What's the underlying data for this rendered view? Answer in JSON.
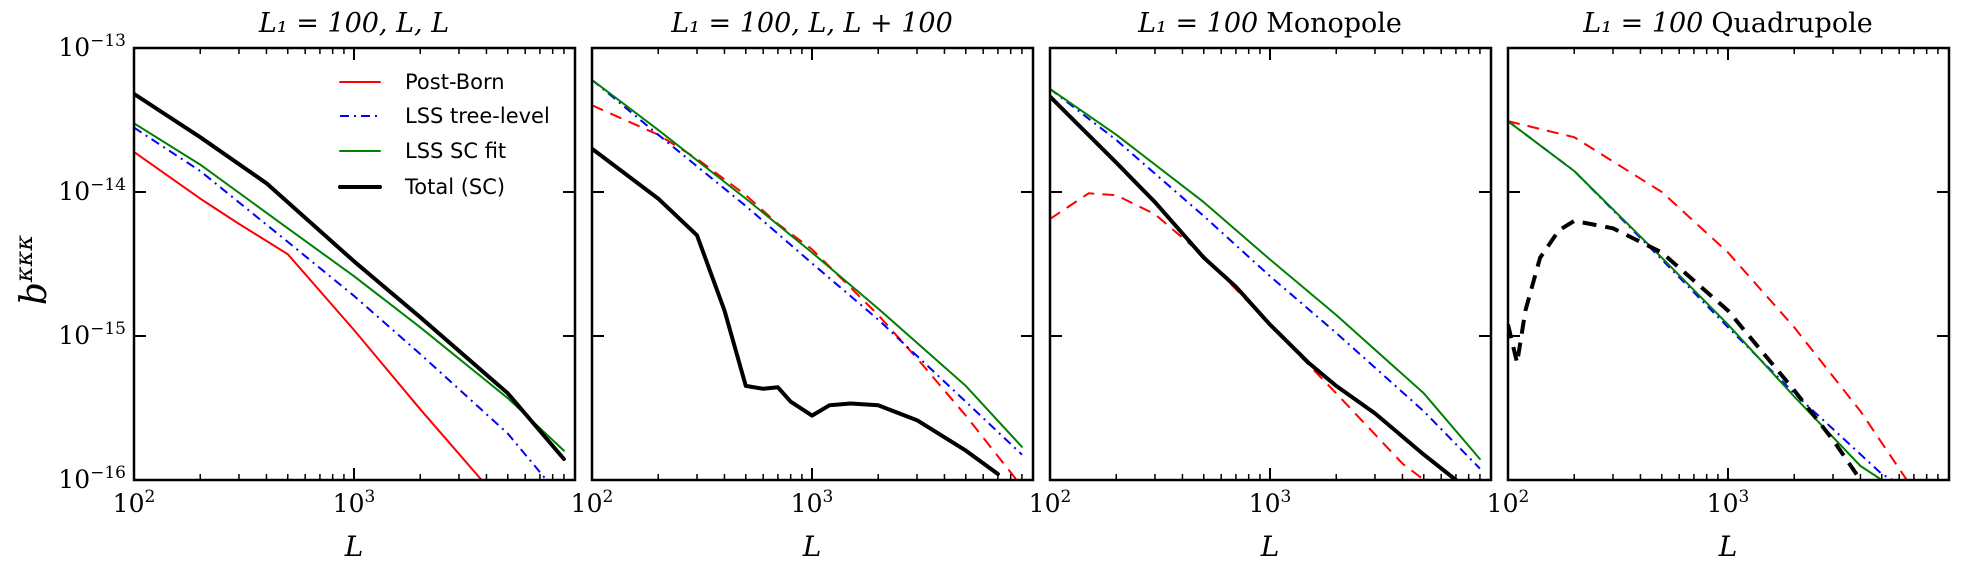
{
  "chart_data": {
    "type": "line",
    "ylabel": "b^κκκ",
    "ylabel_base": "b",
    "ylabel_sup": "κκκ",
    "xlabel": "L",
    "xlim": [
      100,
      9000
    ],
    "ylim": [
      1e-16,
      1e-13
    ],
    "xticks": [
      {
        "value": 100,
        "base": "10",
        "exp": "2"
      },
      {
        "value": 1000,
        "base": "10",
        "exp": "3"
      }
    ],
    "yticks": [
      {
        "value": 1e-13,
        "base": "10",
        "exp": "−13"
      },
      {
        "value": 1e-14,
        "base": "10",
        "exp": "−14"
      },
      {
        "value": 1e-15,
        "base": "10",
        "exp": "−15"
      },
      {
        "value": 1e-16,
        "base": "10",
        "exp": "−16"
      }
    ],
    "legend": [
      {
        "label": "Post-Born",
        "color": "#ff0000",
        "style": "solid",
        "width": 2
      },
      {
        "label": "LSS tree-level",
        "color": "#0000ff",
        "style": "dashdot",
        "width": 2
      },
      {
        "label": "LSS SC fit",
        "color": "#008000",
        "style": "solid",
        "width": 2
      },
      {
        "label": "Total (SC)",
        "color": "#000000",
        "style": "solid",
        "width": 4
      }
    ],
    "panels": [
      {
        "title_math": "L₁ = 100, L, L",
        "title_text": "",
        "series": [
          {
            "name": "Post-Born",
            "color": "#ff0000",
            "style": "solid",
            "width": 2,
            "x": [
              100,
              200,
              300,
              500,
              1000,
              2000,
              3800
            ],
            "y": [
              1.9e-14,
              9e-15,
              6e-15,
              3.7e-15,
              1.1e-15,
              3.1e-16,
              1e-16
            ]
          },
          {
            "name": "LSS tree-level",
            "color": "#0000ff",
            "style": "dashdot",
            "width": 2,
            "x": [
              100,
              200,
              500,
              1000,
              2000,
              5000,
              7500
            ],
            "y": [
              2.8e-14,
              1.4e-14,
              4.5e-15,
              1.9e-15,
              7.5e-16,
              2.1e-16,
              1e-16
            ]
          },
          {
            "name": "LSS SC fit",
            "color": "#008000",
            "style": "solid",
            "width": 2,
            "x": [
              100,
              200,
              500,
              1000,
              2000,
              5000,
              9000
            ],
            "y": [
              3e-14,
              1.55e-14,
              5.6e-15,
              2.6e-15,
              1.15e-15,
              3.7e-16,
              1.6e-16
            ]
          },
          {
            "name": "Total (SC)",
            "color": "#000000",
            "style": "solid",
            "width": 4,
            "x": [
              100,
              200,
              400,
              1000,
              2000,
              5000,
              9000
            ],
            "y": [
              4.8e-14,
              2.4e-14,
              1.15e-14,
              3.3e-15,
              1.35e-15,
              4e-16,
              1.4e-16
            ]
          }
        ]
      },
      {
        "title_math": "L₁ = 100, L, L + 100",
        "title_text": "",
        "series": [
          {
            "name": "Post-Born",
            "color": "#ff0000",
            "style": "dashed",
            "width": 2,
            "x": [
              100,
              200,
              300,
              500,
              700,
              1000,
              2000,
              3000,
              5000,
              9000
            ],
            "y": [
              4e-14,
              2.5e-14,
              1.7e-14,
              9.5e-15,
              6e-15,
              4e-15,
              1.4e-15,
              7e-16,
              2.8e-16,
              9e-17
            ]
          },
          {
            "name": "LSS tree-level",
            "color": "#0000ff",
            "style": "dashdot",
            "width": 2,
            "x": [
              100,
              200,
              500,
              1000,
              2000,
              5000,
              9000
            ],
            "y": [
              6e-14,
              2.5e-14,
              8e-15,
              3.2e-15,
              1.3e-15,
              3.5e-16,
              1.5e-16
            ]
          },
          {
            "name": "LSS SC fit",
            "color": "#008000",
            "style": "solid",
            "width": 2,
            "x": [
              100,
              200,
              500,
              1000,
              2000,
              5000,
              9000
            ],
            "y": [
              6e-14,
              2.7e-14,
              9e-15,
              3.8e-15,
              1.55e-15,
              4.5e-16,
              1.7e-16
            ]
          },
          {
            "name": "Total (SC)",
            "color": "#000000",
            "style": "solid",
            "width": 4,
            "x": [
              100,
              200,
              300,
              400,
              500,
              600,
              700,
              800,
              1000,
              1200,
              1500,
              2000,
              3000,
              5000,
              7000
            ],
            "y": [
              2e-14,
              9e-15,
              5e-15,
              1.5e-15,
              4.5e-16,
              4.3e-16,
              4.4e-16,
              3.5e-16,
              2.8e-16,
              3.3e-16,
              3.4e-16,
              3.3e-16,
              2.6e-16,
              1.6e-16,
              1.1e-16
            ]
          }
        ]
      },
      {
        "title_math": "L₁ = 100",
        "title_text": "Monopole",
        "series": [
          {
            "name": "Post-Born",
            "color": "#ff0000",
            "style": "dashed",
            "width": 2,
            "x": [
              100,
              150,
              200,
              300,
              500,
              1000,
              2000,
              4000,
              5500
            ],
            "y": [
              6.5e-15,
              9.8e-15,
              9.5e-15,
              7e-15,
              3.6e-15,
              1.2e-15,
              4e-16,
              1.3e-16,
              9e-17
            ]
          },
          {
            "name": "LSS tree-level",
            "color": "#0000ff",
            "style": "dashdot",
            "width": 2,
            "x": [
              100,
              200,
              500,
              1000,
              2000,
              5000,
              9000
            ],
            "y": [
              5.2e-14,
              2.3e-14,
              6.8e-15,
              2.6e-15,
              1.05e-15,
              3e-16,
              1.2e-16
            ]
          },
          {
            "name": "LSS SC fit",
            "color": "#008000",
            "style": "solid",
            "width": 2,
            "x": [
              100,
              200,
              500,
              1000,
              2000,
              5000,
              9000
            ],
            "y": [
              5.2e-14,
              2.5e-14,
              8.5e-15,
              3.4e-15,
              1.4e-15,
              4e-16,
              1.4e-16
            ]
          },
          {
            "name": "Total (SC)",
            "color": "#000000",
            "style": "solid",
            "width": 4,
            "x": [
              100,
              200,
              300,
              500,
              700,
              1000,
              1500,
              2000,
              3000,
              5000,
              7000
            ],
            "y": [
              4.6e-14,
              1.6e-14,
              8.5e-15,
              3.5e-15,
              2.2e-15,
              1.2e-15,
              6.5e-16,
              4.5e-16,
              2.9e-16,
              1.5e-16,
              1e-16
            ]
          }
        ]
      },
      {
        "title_math": "L₁ = 100",
        "title_text": "Quadrupole",
        "series": [
          {
            "name": "Post-Born",
            "color": "#ff0000",
            "style": "dashed",
            "width": 2,
            "x": [
              100,
              200,
              500,
              1000,
              2000,
              4000,
              6500
            ],
            "y": [
              3.1e-14,
              2.4e-14,
              1e-14,
              3.8e-15,
              1.15e-15,
              3e-16,
              1e-16
            ]
          },
          {
            "name": "LSS tree-level",
            "color": "#0000ff",
            "style": "dashdot",
            "width": 2,
            "x": [
              100,
              200,
              500,
              1000,
              2000,
              5000,
              5600
            ],
            "y": [
              3.1e-14,
              1.4e-14,
              3.4e-15,
              1.15e-15,
              4e-16,
              1.1e-16,
              1e-16
            ]
          },
          {
            "name": "LSS SC fit",
            "color": "#008000",
            "style": "solid",
            "width": 2,
            "x": [
              100,
              200,
              500,
              1000,
              2000,
              4000,
              5000
            ],
            "y": [
              3.1e-14,
              1.4e-14,
              3.5e-15,
              1.2e-15,
              3.8e-16,
              1.25e-16,
              1e-16
            ]
          },
          {
            "name": "Total (SC)",
            "color": "#000000",
            "style": "dashed",
            "width": 4,
            "x": [
              100,
              110,
              120,
              140,
              170,
              200,
              300,
              500,
              1000,
              2000,
              3000,
              4000
            ],
            "y": [
              1.2e-15,
              6.5e-16,
              1.5e-15,
              3.5e-15,
              5.4e-15,
              6.3e-15,
              5.6e-15,
              3.8e-15,
              1.5e-15,
              4.2e-16,
              1.9e-16,
              1e-16
            ]
          }
        ]
      }
    ]
  }
}
